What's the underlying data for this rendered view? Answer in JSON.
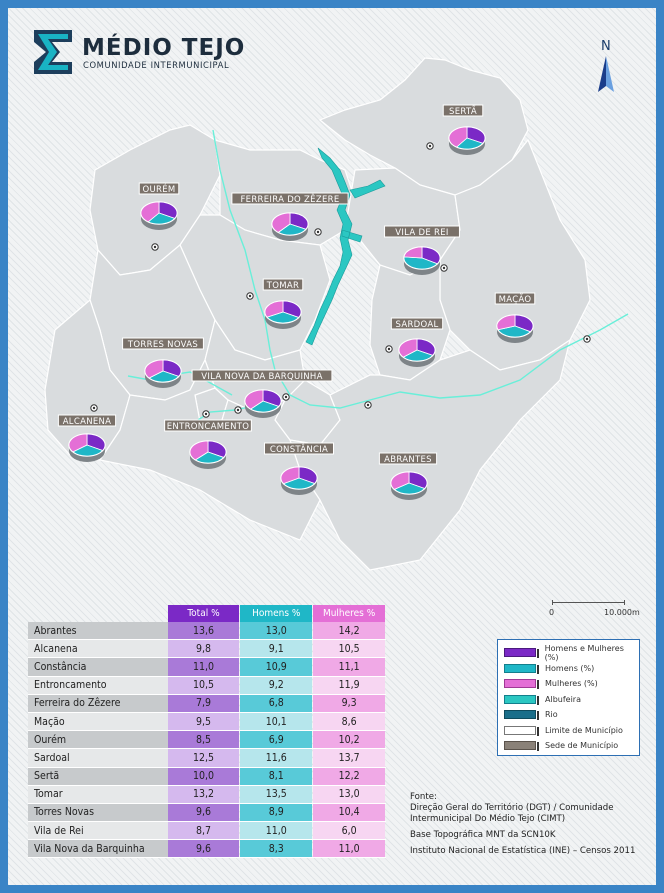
{
  "title": {
    "name": "MÉDIO TEJO",
    "subtitle": "COMUNIDADE INTERMUNICIPAL"
  },
  "north": "N",
  "scale": {
    "start": "0",
    "end": "10.000m"
  },
  "colors": {
    "total": "#7b29c6",
    "homens": "#1fb7c7",
    "mulheres": "#e46fd6",
    "river": "#69efd9",
    "label_bg": "#7a7169"
  },
  "map_labels": [
    "SERTÃ",
    "OURÉM",
    "FERREIRA DO ZÊZERE",
    "VILA DE REI",
    "TOMAR",
    "MAÇÃO",
    "SARDOAL",
    "TORRES NOVAS",
    "VILA NOVA DA BARQUINHA",
    "ALCANENA",
    "ENTRONCAMENTO",
    "CONSTÂNCIA",
    "ABRANTES"
  ],
  "table": {
    "headers": [
      "Total %",
      "Homens %",
      "Mulheres %"
    ],
    "rows": [
      {
        "name": "Abrantes",
        "total": "13,6",
        "homens": "13,0",
        "mulheres": "14,2"
      },
      {
        "name": "Alcanena",
        "total": "9,8",
        "homens": "9,1",
        "mulheres": "10,5"
      },
      {
        "name": "Constância",
        "total": "11,0",
        "homens": "10,9",
        "mulheres": "11,1"
      },
      {
        "name": "Entroncamento",
        "total": "10,5",
        "homens": "9,2",
        "mulheres": "11,9"
      },
      {
        "name": "Ferreira do Zêzere",
        "total": "7,9",
        "homens": "6,8",
        "mulheres": "9,3"
      },
      {
        "name": "Mação",
        "total": "9,5",
        "homens": "10,1",
        "mulheres": "8,6"
      },
      {
        "name": "Ourém",
        "total": "8,5",
        "homens": "6,9",
        "mulheres": "10,2"
      },
      {
        "name": "Sardoal",
        "total": "12,5",
        "homens": "11,6",
        "mulheres": "13,7"
      },
      {
        "name": "Sertã",
        "total": "10,0",
        "homens": "8,1",
        "mulheres": "12,2"
      },
      {
        "name": "Tomar",
        "total": "13,2",
        "homens": "13,5",
        "mulheres": "13,0"
      },
      {
        "name": "Torres Novas",
        "total": "9,6",
        "homens": "8,9",
        "mulheres": "10,4"
      },
      {
        "name": "Vila de Rei",
        "total": "8,7",
        "homens": "11,0",
        "mulheres": "6,0"
      },
      {
        "name": "Vila Nova da Barquinha",
        "total": "9,6",
        "homens": "8,3",
        "mulheres": "11,0"
      }
    ]
  },
  "legend": [
    {
      "label": "Homens e Mulheres (%)",
      "kind": "total"
    },
    {
      "label": "Homens (%)",
      "kind": "homens"
    },
    {
      "label": "Mulheres (%)",
      "kind": "mulheres"
    },
    {
      "label": "Albufeira",
      "kind": "albufeira"
    },
    {
      "label": "Rio",
      "kind": "rio"
    },
    {
      "label": "Limite de Município",
      "kind": "limite"
    },
    {
      "label": "Sede de Município",
      "kind": "sede"
    }
  ],
  "sources": {
    "heading": "Fonte:",
    "line1": "Direção Geral do Território (DGT) / Comunidade Intermunicipal Do Médio Tejo (CIMT)",
    "line2": "Base Topográfica MNT da SCN10K",
    "line3": "Instituto Nacional de Estatística (INE) – Censos 2011"
  }
}
